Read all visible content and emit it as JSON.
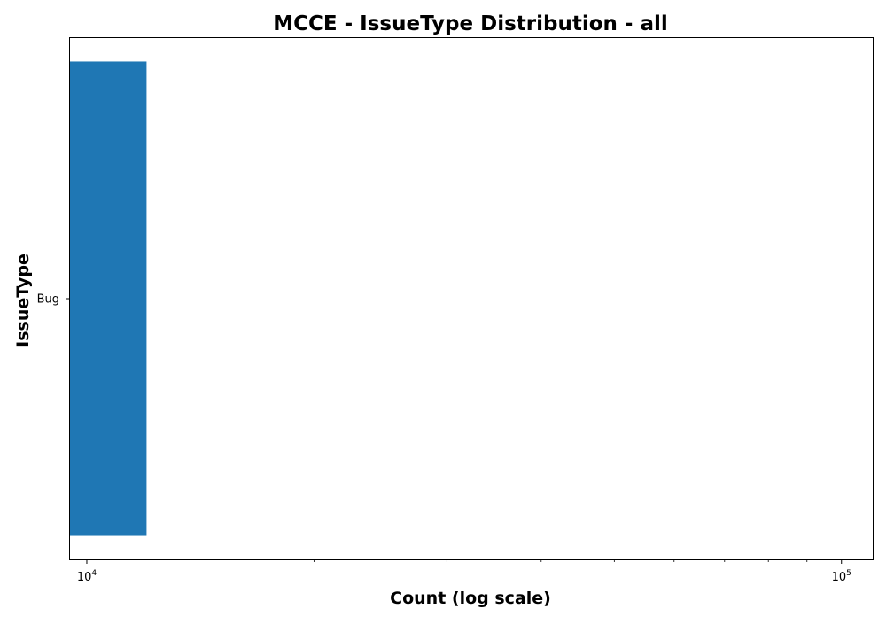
{
  "chart_data": {
    "type": "bar",
    "orientation": "horizontal",
    "title": "MCCE - IssueType Distribution - all",
    "xlabel": "Count (log scale)",
    "ylabel": "IssueType",
    "x_scale": "log",
    "xlim": [
      9500,
      110000
    ],
    "x_major_ticks": [
      {
        "value": 10000,
        "base": "10",
        "exp": "4"
      },
      {
        "value": 100000,
        "base": "10",
        "exp": "5"
      }
    ],
    "x_minor_ticks": [
      20000,
      30000,
      40000,
      50000,
      60000,
      70000,
      80000,
      90000
    ],
    "categories": [
      "Bug"
    ],
    "values": [
      12000
    ],
    "bar_color": "#1f77b4",
    "grid": false,
    "legend": "none"
  }
}
